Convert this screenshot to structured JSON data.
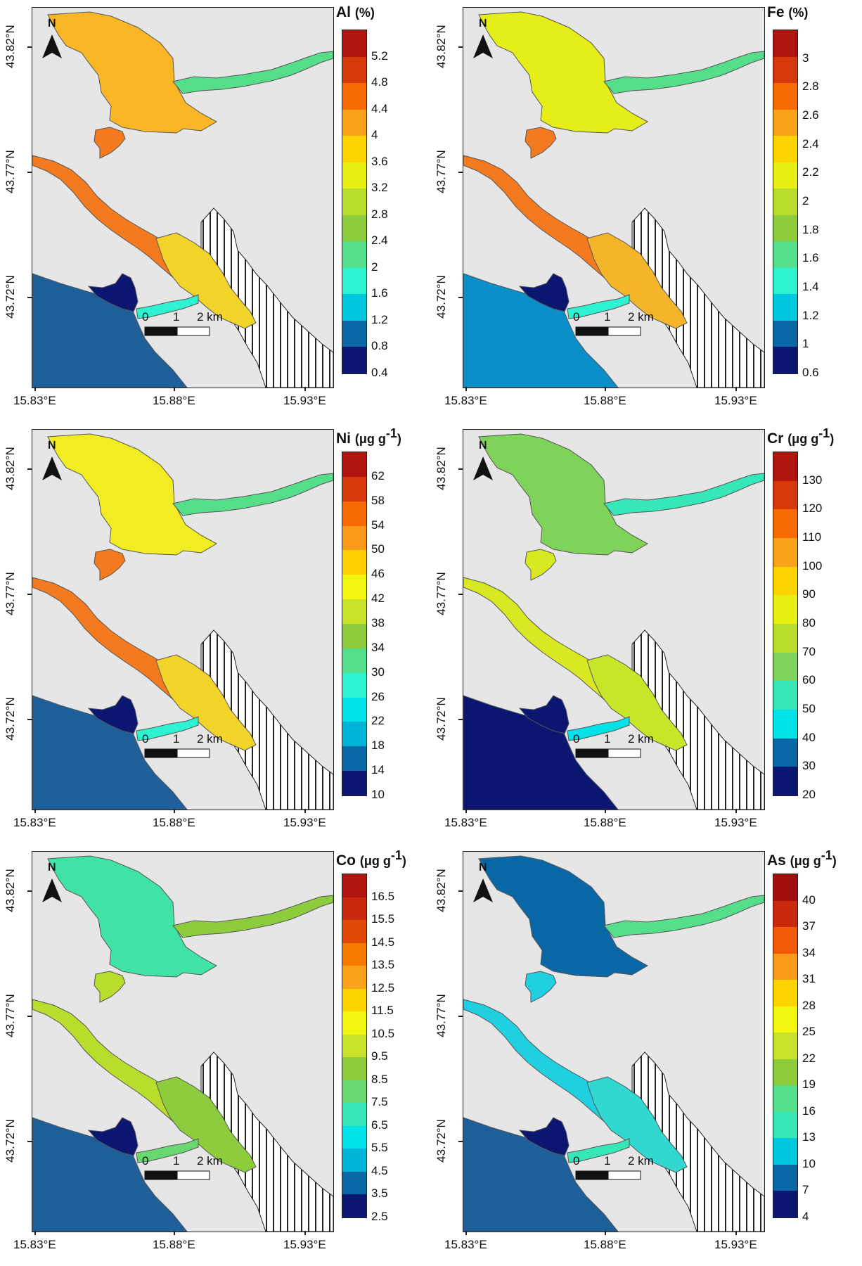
{
  "map_common": {
    "north_label": "N",
    "lat_labels": [
      "43.82°N",
      "43.77°N",
      "43.72°N"
    ],
    "lon_labels": [
      "15.83°E",
      "15.88°E",
      "15.93°E"
    ],
    "scale_labels": [
      "0",
      "1",
      "2 km"
    ]
  },
  "colors": {
    "background": "#e6e6e6",
    "coast_outline": "#555555",
    "sea": "#1f5f99"
  },
  "panels": [
    {
      "element": "Al",
      "unit": "(%)",
      "ticks": [
        "5.2",
        "4.8",
        "4.4",
        "4",
        "3.6",
        "3.2",
        "2.8",
        "2.4",
        "2",
        "1.6",
        "1.2",
        "0.8",
        "0.4"
      ],
      "colors": [
        "#b2150f",
        "#d5390a",
        "#f76a00",
        "#fba21b",
        "#fdd400",
        "#e8ef12",
        "#b8dd2c",
        "#8dcd3d",
        "#55df8a",
        "#2ef3d3",
        "#00c7e0",
        "#0a67a5",
        "#0a1670"
      ],
      "lake_color": "#fbb626",
      "channel_color": "#f47a20",
      "basin_color": "#f3d42a",
      "sea_color": "#1f5f99"
    },
    {
      "element": "Fe",
      "unit": "(%)",
      "ticks": [
        "3",
        "2.8",
        "2.6",
        "2.4",
        "2.2",
        "2",
        "1.8",
        "1.6",
        "1.4",
        "1.2",
        "1",
        "0.6"
      ],
      "colors": [
        "#b2150f",
        "#d5390a",
        "#f76a00",
        "#fba21b",
        "#fdd400",
        "#e8ef12",
        "#b8dd2c",
        "#8dcd3d",
        "#55df8a",
        "#2ef3d3",
        "#00c7e0",
        "#0a67a5",
        "#0a1670"
      ],
      "lake_color": "#e6ee1a",
      "channel_color": "#f47a20",
      "basin_color": "#f5b52a",
      "sea_color": "#0a8fc9"
    },
    {
      "element": "Ni",
      "unit": "(μg g",
      "unit_sup": "-1",
      "unit_end": ")",
      "ticks": [
        "62",
        "58",
        "54",
        "50",
        "46",
        "42",
        "38",
        "34",
        "30",
        "26",
        "22",
        "18",
        "14",
        "10"
      ],
      "colors": [
        "#b2150f",
        "#d5390a",
        "#f76a00",
        "#fb9a1b",
        "#fdcf00",
        "#f2f610",
        "#c8e22a",
        "#8dcd3d",
        "#55df8a",
        "#2ef3d3",
        "#00e1e8",
        "#00b4d8",
        "#0a67a5",
        "#0a1670"
      ],
      "lake_color": "#f2ec22",
      "channel_color": "#f47a20",
      "basin_color": "#f3d42a",
      "sea_color": "#1f5f99"
    },
    {
      "element": "Cr",
      "unit": "(μg g",
      "unit_sup": "-1",
      "unit_end": ")",
      "ticks": [
        "130",
        "120",
        "110",
        "100",
        "90",
        "80",
        "70",
        "60",
        "50",
        "40",
        "30",
        "20"
      ],
      "colors": [
        "#b2150f",
        "#d5390a",
        "#f76a00",
        "#fba21b",
        "#fdd400",
        "#e8ef12",
        "#b8dd2c",
        "#7fd35a",
        "#36e8b8",
        "#00e1e8",
        "#0a67a5",
        "#0a1670"
      ],
      "lake_color": "#7fd35a",
      "channel_color": "#d8e822",
      "basin_color": "#c9e52a",
      "sea_color": "#0a1670"
    },
    {
      "element": "Co",
      "unit": "(μg g",
      "unit_sup": "-1",
      "unit_end": ")",
      "ticks": [
        "16.5",
        "15.5",
        "14.5",
        "13.5",
        "12.5",
        "11.5",
        "10.5",
        "9.5",
        "8.5",
        "7.5",
        "6.5",
        "5.5",
        "4.5",
        "3.5",
        "2.5"
      ],
      "colors": [
        "#b2150f",
        "#c9290c",
        "#e04a06",
        "#f77a00",
        "#fba21b",
        "#fdd400",
        "#f2f610",
        "#c8e22a",
        "#8dcd3d",
        "#6ad870",
        "#36e8b8",
        "#00e1e8",
        "#00b4d8",
        "#0a67a5",
        "#0a1670"
      ],
      "lake_color": "#3fe3a6",
      "channel_color": "#b8dd2c",
      "basin_color": "#8dcd3d",
      "sea_color": "#1f5f99"
    },
    {
      "element": "As",
      "unit": "(μg g",
      "unit_sup": "-1",
      "unit_end": ")",
      "ticks": [
        "40",
        "37",
        "34",
        "31",
        "28",
        "25",
        "22",
        "19",
        "16",
        "13",
        "10",
        "7",
        "4"
      ],
      "colors": [
        "#a20d0d",
        "#c9290c",
        "#f05a06",
        "#fb9a1b",
        "#fdd400",
        "#f2f610",
        "#c8e22a",
        "#8dcd3d",
        "#55df8a",
        "#36e8b8",
        "#00c7e0",
        "#0a67a5",
        "#0a1670"
      ],
      "lake_color": "#0a67a5",
      "channel_color": "#20d0e0",
      "basin_color": "#30d8d0",
      "sea_color": "#1f5f99"
    }
  ]
}
